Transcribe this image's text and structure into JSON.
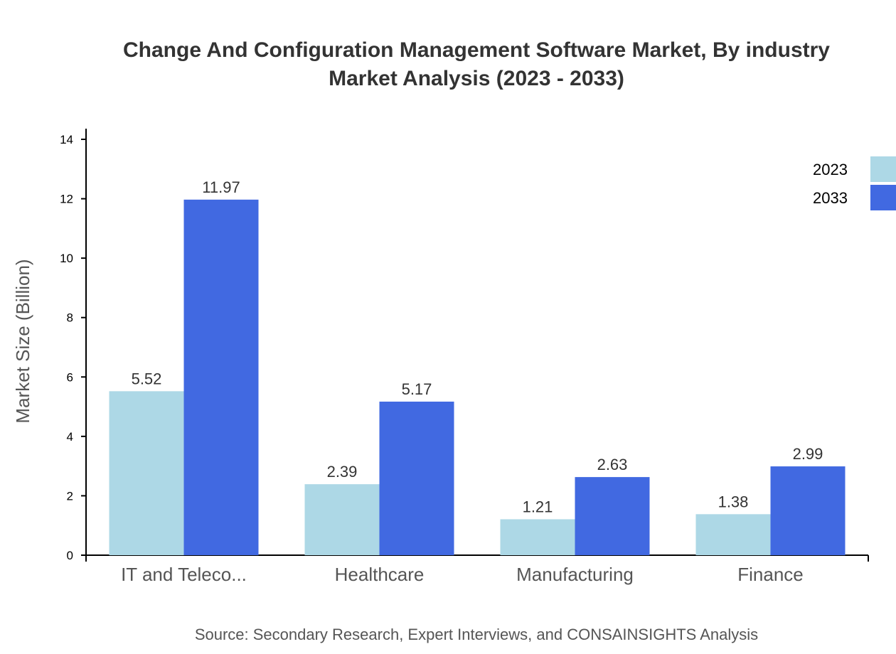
{
  "chart_data": {
    "type": "bar",
    "title": [
      "Change And Configuration Management Software Market, By industry",
      "Market Analysis (2023 - 2033)"
    ],
    "xlabel": "",
    "ylabel": "Market Size (Billion)",
    "ylim": [
      0,
      14
    ],
    "yticks": [
      0,
      2,
      4,
      6,
      8,
      10,
      12,
      14
    ],
    "categories": [
      "IT and Teleco...",
      "Healthcare",
      "Manufacturing",
      "Finance"
    ],
    "series": [
      {
        "name": "2023",
        "color": "#add8e6",
        "values": [
          5.52,
          2.39,
          1.21,
          1.38
        ]
      },
      {
        "name": "2033",
        "color": "#4169e1",
        "values": [
          11.97,
          5.17,
          2.63,
          2.99
        ]
      }
    ],
    "legend_position": "top-right",
    "grid": false,
    "source": "Source: Secondary Research, Expert Interviews, and CONSAINSIGHTS Analysis"
  }
}
